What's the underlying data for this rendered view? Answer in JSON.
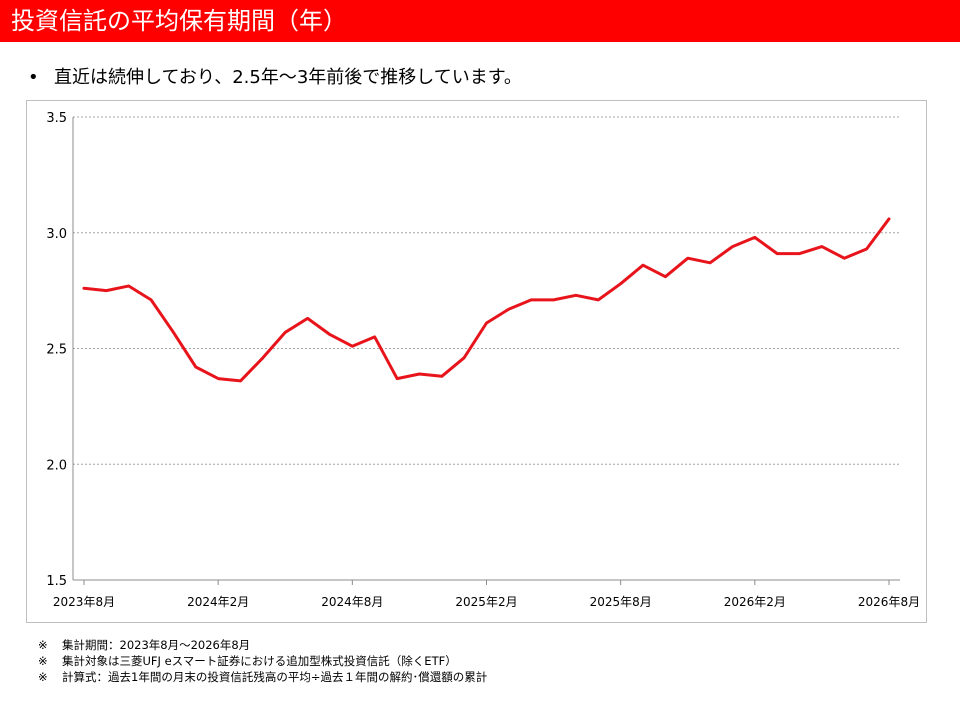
{
  "header": {
    "title": "投資信託の平均保有期間（年）"
  },
  "bullet": {
    "marker": "•",
    "text": "直近は続伸しており、2.5年～3年前後で推移しています。"
  },
  "chart_data": {
    "type": "line",
    "title": "",
    "xlabel": "",
    "ylabel": "",
    "ylim": [
      1.5,
      3.5
    ],
    "yticks": [
      1.5,
      2.0,
      2.5,
      3.0,
      3.5
    ],
    "ytick_labels": [
      "1.5",
      "2.0",
      "2.5",
      "3.0",
      "3.5"
    ],
    "xtick_labels": [
      "2023年8月",
      "2024年2月",
      "2024年8月",
      "2025年2月",
      "2025年8月",
      "2026年2月",
      "2026年8月"
    ],
    "grid": "horizontal dotted",
    "legend": "none",
    "color": "#e8141b",
    "series": [
      {
        "name": "",
        "x": [
          "2023-08",
          "2023-09",
          "2023-10",
          "2023-11",
          "2023-12",
          "2024-01",
          "2024-02",
          "2024-03",
          "2024-04",
          "2024-05",
          "2024-06",
          "2024-07",
          "2024-08",
          "2024-09",
          "2024-10",
          "2024-11",
          "2024-12",
          "2025-01",
          "2025-02",
          "2025-03",
          "2025-04",
          "2025-05",
          "2025-06",
          "2025-07",
          "2025-08",
          "2025-09",
          "2025-10",
          "2025-11",
          "2025-12",
          "2026-01",
          "2026-02",
          "2026-03",
          "2026-04",
          "2026-05",
          "2026-06",
          "2026-07",
          "2026-08"
        ],
        "values": [
          2.76,
          2.75,
          2.77,
          2.71,
          2.57,
          2.42,
          2.37,
          2.36,
          2.46,
          2.57,
          2.63,
          2.56,
          2.51,
          2.55,
          2.37,
          2.39,
          2.38,
          2.46,
          2.61,
          2.67,
          2.71,
          2.71,
          2.73,
          2.71,
          2.78,
          2.86,
          2.81,
          2.89,
          2.87,
          2.94,
          2.98,
          2.91,
          2.91,
          2.94,
          2.89,
          2.93,
          3.06
        ]
      }
    ]
  },
  "notes": [
    {
      "mark": "※",
      "text": "集計期間：2023年8月～2026年8月"
    },
    {
      "mark": "※",
      "text": "集計対象は三菱UFJ eスマート証券における追加型株式投資信託（除くETF）"
    },
    {
      "mark": "※",
      "text": "計算式：過去1年間の月末の投資信託残高の平均÷過去１年間の解約･償還額の累計"
    }
  ]
}
